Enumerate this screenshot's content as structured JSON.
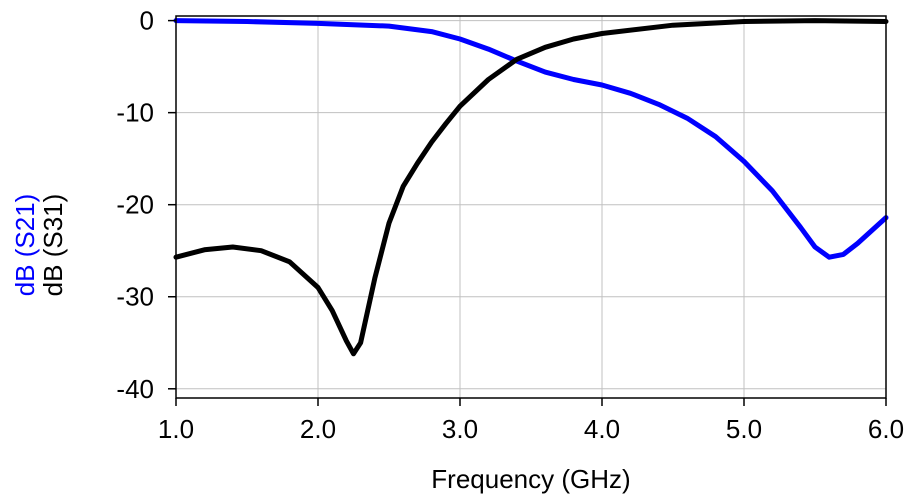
{
  "chart_data": {
    "type": "line",
    "title": "",
    "xlabel": "Frequency (GHz)",
    "ylabel_lines": [
      {
        "text": "dB (S21)",
        "color": "#0000ff"
      },
      {
        "text": "dB (S31)",
        "color": "#000000"
      }
    ],
    "xlim": [
      1.0,
      6.0
    ],
    "ylim": [
      -41,
      0.5
    ],
    "x_ticks": [
      1.0,
      2.0,
      3.0,
      4.0,
      5.0,
      6.0
    ],
    "x_tick_labels": [
      "1.0",
      "2.0",
      "3.0",
      "4.0",
      "5.0",
      "6.0"
    ],
    "y_ticks": [
      0,
      -10,
      -20,
      -30,
      -40
    ],
    "y_tick_labels": [
      "0",
      "-10",
      "-20",
      "-30",
      "-40"
    ],
    "grid": true,
    "legend": "none",
    "series": [
      {
        "name": "dB (S21)",
        "color": "#0000ff",
        "x": [
          1.0,
          1.5,
          2.0,
          2.5,
          2.8,
          3.0,
          3.2,
          3.4,
          3.6,
          3.8,
          4.0,
          4.2,
          4.4,
          4.6,
          4.8,
          5.0,
          5.2,
          5.4,
          5.5,
          5.6,
          5.7,
          5.8,
          5.9,
          6.0
        ],
        "y": [
          0,
          -0.1,
          -0.3,
          -0.6,
          -1.2,
          -2.0,
          -3.1,
          -4.4,
          -5.6,
          -6.4,
          -7.0,
          -7.9,
          -9.1,
          -10.6,
          -12.6,
          -15.3,
          -18.5,
          -22.5,
          -24.6,
          -25.7,
          -25.4,
          -24.2,
          -22.8,
          -21.4
        ]
      },
      {
        "name": "dB (S31)",
        "color": "#000000",
        "x": [
          1.0,
          1.2,
          1.4,
          1.6,
          1.8,
          2.0,
          2.1,
          2.2,
          2.25,
          2.3,
          2.4,
          2.5,
          2.6,
          2.7,
          2.8,
          2.9,
          3.0,
          3.2,
          3.4,
          3.6,
          3.8,
          4.0,
          4.5,
          5.0,
          5.5,
          6.0
        ],
        "y": [
          -25.7,
          -24.9,
          -24.6,
          -25.0,
          -26.2,
          -29.0,
          -31.5,
          -34.8,
          -36.2,
          -35.0,
          -28.0,
          -22.0,
          -18.0,
          -15.5,
          -13.2,
          -11.2,
          -9.3,
          -6.4,
          -4.2,
          -2.9,
          -2.0,
          -1.4,
          -0.5,
          -0.1,
          0,
          -0.1
        ]
      }
    ]
  }
}
